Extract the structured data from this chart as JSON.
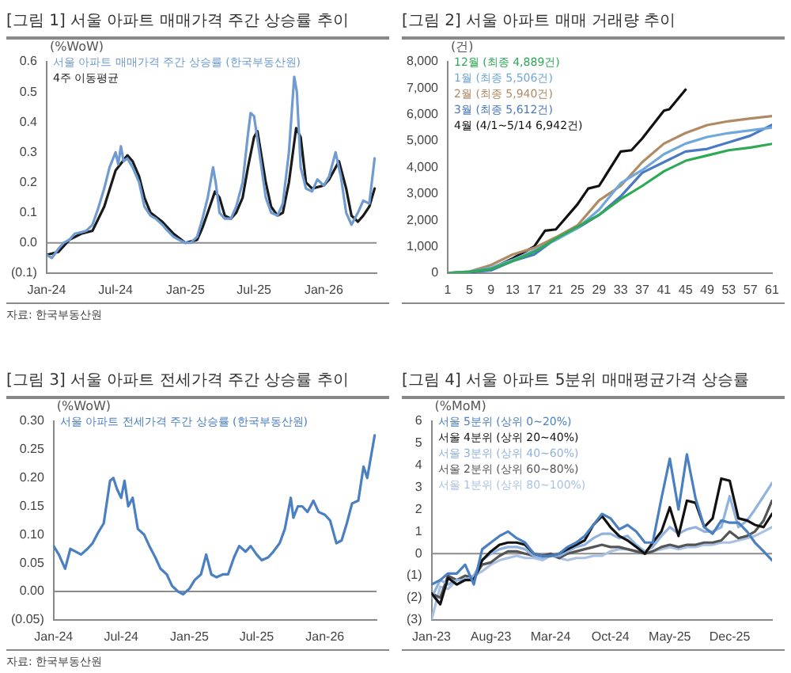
{
  "chart_data": [
    {
      "type": "line",
      "title": "[그림 1] 서울 아파트 매매가격 주간 상승률 추이",
      "ylabel": "(%WoW)",
      "annotations": [
        "자료: 한국부동산원"
      ],
      "legend": "top left",
      "marker": "none",
      "line_style": "solid",
      "grid": false,
      "xlim": [
        "2024-01-01",
        "2026-05-20"
      ],
      "xticks": [
        {
          "value": "2024-01-01",
          "label": "Jan-24"
        },
        {
          "value": "2024-07-01",
          "label": "Jul-24"
        },
        {
          "value": "2025-01-01",
          "label": "Jan-25"
        },
        {
          "value": "2025-07-01",
          "label": "Jul-25"
        },
        {
          "value": "2026-01-01",
          "label": "Jan-26"
        }
      ],
      "ylim": [
        -0.1,
        0.6
      ],
      "yticks": [
        {
          "value": -0.1,
          "label": "(0.1)"
        },
        {
          "value": 0,
          "label": "0.0"
        },
        0.1,
        0.2,
        0.3,
        0.4,
        0.5,
        0.6
      ],
      "ref_lines": [
        {
          "axis": "y",
          "value": 0,
          "color": "#8c8c8c"
        }
      ],
      "series": [
        {
          "name": "서울 아파트 매매가격 주간 상승률 (한국부동산원)",
          "color": "#6f9bd1",
          "x": [
            "2024-01-01",
            "2024-01-15",
            "2024-02-01",
            "2024-02-15",
            "2024-03-01",
            "2024-03-15",
            "2024-04-01",
            "2024-04-15",
            "2024-05-01",
            "2024-05-15",
            "2024-06-01",
            "2024-06-15",
            "2024-07-01",
            "2024-07-08",
            "2024-07-15",
            "2024-07-22",
            "2024-08-01",
            "2024-08-15",
            "2024-09-01",
            "2024-09-15",
            "2024-10-01",
            "2024-10-15",
            "2024-11-01",
            "2024-11-15",
            "2024-12-01",
            "2024-12-15",
            "2025-01-01",
            "2025-01-15",
            "2025-02-01",
            "2025-02-15",
            "2025-03-01",
            "2025-03-15",
            "2025-03-22",
            "2025-04-01",
            "2025-04-15",
            "2025-05-01",
            "2025-05-15",
            "2025-06-01",
            "2025-06-15",
            "2025-06-22",
            "2025-07-01",
            "2025-07-15",
            "2025-08-01",
            "2025-08-15",
            "2025-09-01",
            "2025-09-15",
            "2025-10-01",
            "2025-10-15",
            "2025-10-22",
            "2025-11-01",
            "2025-11-15",
            "2025-12-01",
            "2025-12-15",
            "2026-01-01",
            "2026-01-15",
            "2026-02-01",
            "2026-02-15",
            "2026-03-01",
            "2026-03-15",
            "2026-04-01",
            "2026-04-15",
            "2026-05-01",
            "2026-05-15"
          ],
          "values": [
            -0.04,
            -0.05,
            -0.02,
            0.0,
            0.01,
            0.03,
            0.035,
            0.04,
            0.06,
            0.11,
            0.18,
            0.25,
            0.3,
            0.26,
            0.32,
            0.27,
            0.28,
            0.25,
            0.2,
            0.12,
            0.09,
            0.08,
            0.06,
            0.04,
            0.02,
            0.01,
            0.0,
            0.0,
            0.02,
            0.08,
            0.15,
            0.25,
            0.2,
            0.1,
            0.08,
            0.08,
            0.12,
            0.2,
            0.36,
            0.43,
            0.42,
            0.3,
            0.15,
            0.1,
            0.09,
            0.13,
            0.3,
            0.55,
            0.5,
            0.25,
            0.18,
            0.17,
            0.21,
            0.19,
            0.22,
            0.3,
            0.22,
            0.1,
            0.06,
            0.1,
            0.14,
            0.13,
            0.28
          ]
        },
        {
          "name": "4주 이동평균",
          "color": "#1a1a1a",
          "x": [
            "2024-01-01",
            "2024-02-01",
            "2024-03-01",
            "2024-04-01",
            "2024-05-01",
            "2024-06-01",
            "2024-07-01",
            "2024-08-01",
            "2024-08-15",
            "2024-09-01",
            "2024-09-15",
            "2024-10-01",
            "2024-11-01",
            "2024-12-01",
            "2025-01-01",
            "2025-02-01",
            "2025-02-15",
            "2025-03-01",
            "2025-03-20",
            "2025-04-01",
            "2025-04-15",
            "2025-05-01",
            "2025-05-15",
            "2025-06-01",
            "2025-06-15",
            "2025-07-01",
            "2025-07-10",
            "2025-08-01",
            "2025-08-15",
            "2025-09-01",
            "2025-09-15",
            "2025-10-01",
            "2025-10-20",
            "2025-11-01",
            "2025-11-15",
            "2025-12-01",
            "2026-01-01",
            "2026-01-15",
            "2026-02-10",
            "2026-03-01",
            "2026-03-15",
            "2026-04-01",
            "2026-04-15",
            "2026-05-01",
            "2026-05-15"
          ],
          "values": [
            -0.04,
            -0.03,
            0.01,
            0.03,
            0.04,
            0.12,
            0.24,
            0.29,
            0.27,
            0.22,
            0.15,
            0.1,
            0.07,
            0.03,
            0.0,
            0.01,
            0.05,
            0.1,
            0.17,
            0.15,
            0.09,
            0.08,
            0.1,
            0.15,
            0.25,
            0.35,
            0.37,
            0.2,
            0.12,
            0.09,
            0.1,
            0.2,
            0.38,
            0.35,
            0.2,
            0.18,
            0.19,
            0.21,
            0.27,
            0.18,
            0.09,
            0.07,
            0.09,
            0.12,
            0.18
          ]
        }
      ]
    },
    {
      "type": "line",
      "title": "[그림 2] 서울 아파트 매매 거래량 추이",
      "ylabel": "(건)",
      "legend": "top left",
      "marker": "none",
      "line_style": "solid",
      "grid": false,
      "xlim": [
        1,
        61
      ],
      "xticks": [
        1,
        5,
        9,
        13,
        17,
        21,
        25,
        29,
        33,
        37,
        41,
        45,
        49,
        53,
        57,
        61
      ],
      "ylim": [
        0,
        8000
      ],
      "yticks": [
        0,
        {
          "value": 1000,
          "label": "1,000"
        },
        {
          "value": 2000,
          "label": "2,000"
        },
        {
          "value": 3000,
          "label": "3,000"
        },
        {
          "value": 4000,
          "label": "4,000"
        },
        {
          "value": 5000,
          "label": "5,000"
        },
        {
          "value": 6000,
          "label": "6,000"
        },
        {
          "value": 7000,
          "label": "7,000"
        },
        {
          "value": 8000,
          "label": "8,000"
        }
      ],
      "series": [
        {
          "name": "12월 (최종 4,889건)",
          "color": "#2eaa55",
          "x": [
            1,
            5,
            9,
            13,
            17,
            21,
            25,
            29,
            33,
            37,
            41,
            45,
            49,
            53,
            57,
            61
          ],
          "values": [
            0,
            50,
            150,
            450,
            800,
            1300,
            1750,
            2200,
            2800,
            3300,
            3850,
            4250,
            4450,
            4650,
            4750,
            4889
          ]
        },
        {
          "name": "1월 (최종 5,506건)",
          "color": "#6fa8dc",
          "x": [
            1,
            5,
            9,
            13,
            17,
            21,
            25,
            29,
            33,
            37,
            41,
            45,
            49,
            53,
            57,
            61
          ],
          "values": [
            0,
            50,
            200,
            500,
            850,
            1250,
            1700,
            2400,
            3400,
            3900,
            4500,
            4900,
            5150,
            5300,
            5400,
            5506
          ]
        },
        {
          "name": "2월 (최종 5,940건)",
          "color": "#b08a64",
          "x": [
            1,
            5,
            9,
            13,
            17,
            21,
            25,
            29,
            33,
            37,
            41,
            45,
            49,
            53,
            57,
            61
          ],
          "values": [
            0,
            50,
            300,
            700,
            950,
            1350,
            1800,
            2750,
            3300,
            4200,
            4900,
            5300,
            5600,
            5750,
            5850,
            5940
          ]
        },
        {
          "name": "3월 (최종 5,612건)",
          "color": "#4a78c2",
          "x": [
            1,
            5,
            9,
            13,
            17,
            21,
            25,
            29,
            33,
            37,
            41,
            45,
            49,
            53,
            57,
            61
          ],
          "values": [
            0,
            30,
            100,
            450,
            700,
            1300,
            1700,
            2200,
            2900,
            3800,
            4200,
            4600,
            4700,
            4950,
            5200,
            5612
          ]
        },
        {
          "name": "4월 (4/1~5/14 6,942건)",
          "color": "#111111",
          "x": [
            1,
            5,
            9,
            13,
            17,
            19,
            21,
            25,
            27,
            29,
            33,
            35,
            37,
            41,
            42,
            45
          ],
          "values": [
            0,
            30,
            150,
            550,
            1000,
            1600,
            1650,
            2600,
            3200,
            3300,
            4600,
            4650,
            5100,
            6150,
            6200,
            6942
          ]
        }
      ]
    },
    {
      "type": "line",
      "title": "[그림 3] 서울 아파트 전세가격 주간 상승률 추이",
      "ylabel": "(%WoW)",
      "annotations": [
        "자료: 한국부동산원"
      ],
      "legend": "top left",
      "marker": "none",
      "line_style": "solid",
      "grid": false,
      "xlim": [
        "2024-01-01",
        "2026-05-20"
      ],
      "xticks": [
        {
          "value": "2024-01-01",
          "label": "Jan-24"
        },
        {
          "value": "2024-07-01",
          "label": "Jul-24"
        },
        {
          "value": "2025-01-01",
          "label": "Jan-25"
        },
        {
          "value": "2025-07-01",
          "label": "Jul-25"
        },
        {
          "value": "2026-01-01",
          "label": "Jan-26"
        }
      ],
      "ylim": [
        -0.05,
        0.3
      ],
      "yticks": [
        {
          "value": -0.05,
          "label": "(0.05)"
        },
        {
          "value": 0,
          "label": "0.00"
        },
        {
          "value": 0.05,
          "label": "0.05"
        },
        {
          "value": 0.1,
          "label": "0.10"
        },
        {
          "value": 0.15,
          "label": "0.15"
        },
        {
          "value": 0.2,
          "label": "0.20"
        },
        {
          "value": 0.25,
          "label": "0.25"
        },
        {
          "value": 0.3,
          "label": "0.30"
        }
      ],
      "ref_lines": [
        {
          "axis": "y",
          "value": 0,
          "color": "#8c8c8c"
        }
      ],
      "series": [
        {
          "name": "서울 아파트 전세가격 주간 상승률 (한국부동산원)",
          "color": "#4a7fc1",
          "x": [
            "2024-01-01",
            "2024-01-15",
            "2024-02-01",
            "2024-02-15",
            "2024-03-01",
            "2024-03-15",
            "2024-04-01",
            "2024-04-15",
            "2024-05-01",
            "2024-05-15",
            "2024-06-01",
            "2024-06-10",
            "2024-06-20",
            "2024-07-01",
            "2024-07-10",
            "2024-07-20",
            "2024-08-01",
            "2024-08-15",
            "2024-09-01",
            "2024-09-15",
            "2024-10-01",
            "2024-10-15",
            "2024-11-01",
            "2024-11-15",
            "2024-12-01",
            "2024-12-15",
            "2025-01-01",
            "2025-01-15",
            "2025-02-01",
            "2025-02-15",
            "2025-03-01",
            "2025-03-15",
            "2025-04-01",
            "2025-04-15",
            "2025-05-01",
            "2025-05-15",
            "2025-06-01",
            "2025-06-15",
            "2025-07-01",
            "2025-07-15",
            "2025-08-01",
            "2025-08-15",
            "2025-09-01",
            "2025-09-15",
            "2025-10-01",
            "2025-10-08",
            "2025-10-20",
            "2025-11-01",
            "2025-11-15",
            "2025-12-01",
            "2025-12-15",
            "2026-01-01",
            "2026-01-15",
            "2026-02-01",
            "2026-02-15",
            "2026-03-01",
            "2026-03-15",
            "2026-04-01",
            "2026-04-15",
            "2026-04-25",
            "2026-05-15"
          ],
          "values": [
            0.08,
            0.065,
            0.04,
            0.075,
            0.07,
            0.065,
            0.075,
            0.085,
            0.105,
            0.12,
            0.195,
            0.2,
            0.18,
            0.165,
            0.195,
            0.15,
            0.165,
            0.11,
            0.1,
            0.08,
            0.06,
            0.04,
            0.03,
            0.01,
            0.0,
            -0.005,
            0.005,
            0.02,
            0.03,
            0.065,
            0.03,
            0.025,
            0.03,
            0.03,
            0.06,
            0.08,
            0.07,
            0.08,
            0.065,
            0.055,
            0.06,
            0.07,
            0.085,
            0.11,
            0.165,
            0.13,
            0.15,
            0.15,
            0.14,
            0.16,
            0.14,
            0.135,
            0.125,
            0.085,
            0.09,
            0.12,
            0.155,
            0.16,
            0.22,
            0.2,
            0.275
          ]
        }
      ]
    },
    {
      "type": "line",
      "title": "[그림 4] 서울 아파트 5분위 매매평균가격 상승률",
      "ylabel": "(%MoM)",
      "legend": "top left",
      "marker": "none",
      "line_style": "solid",
      "grid": false,
      "xlim": [
        "2023-01",
        "2026-05"
      ],
      "xticks": [
        {
          "value": "2023-01",
          "label": "Jan-23"
        },
        {
          "value": "2023-08",
          "label": "Aug-23"
        },
        {
          "value": "2024-03",
          "label": "Mar-24"
        },
        {
          "value": "2024-10",
          "label": "Oct-24"
        },
        {
          "value": "2025-05",
          "label": "May-25"
        },
        {
          "value": "2025-12",
          "label": "Dec-25"
        }
      ],
      "ylim": [
        -3,
        6
      ],
      "yticks": [
        {
          "value": -3,
          "label": "(3)"
        },
        {
          "value": -2,
          "label": "(2)"
        },
        {
          "value": -1,
          "label": "(1)"
        },
        0,
        1,
        2,
        3,
        4,
        5,
        6
      ],
      "ref_lines": [
        {
          "axis": "y",
          "value": 0,
          "color": "#8c8c8c"
        }
      ],
      "x": [
        "2023-01",
        "2023-02",
        "2023-03",
        "2023-04",
        "2023-05",
        "2023-06",
        "2023-07",
        "2023-08",
        "2023-09",
        "2023-10",
        "2023-11",
        "2023-12",
        "2024-01",
        "2024-02",
        "2024-03",
        "2024-04",
        "2024-05",
        "2024-06",
        "2024-07",
        "2024-08",
        "2024-09",
        "2024-10",
        "2024-11",
        "2024-12",
        "2025-01",
        "2025-02",
        "2025-03",
        "2025-04",
        "2025-05",
        "2025-06",
        "2025-07",
        "2025-08",
        "2025-09",
        "2025-10",
        "2025-11",
        "2025-12",
        "2026-01",
        "2026-02",
        "2026-03",
        "2026-04",
        "2026-05"
      ],
      "series": [
        {
          "name": "서울 5분위 (상위 0~20%)",
          "color": "#4a7fc1",
          "values": [
            -1.4,
            -1.2,
            -0.9,
            -0.9,
            -0.5,
            -1.4,
            0.2,
            0.5,
            0.8,
            1.0,
            0.7,
            0.5,
            0.0,
            -0.1,
            -0.1,
            0.0,
            0.3,
            0.5,
            0.8,
            1.3,
            1.8,
            1.6,
            1.1,
            1.3,
            1.0,
            0.5,
            0.5,
            2.5,
            4.3,
            2.0,
            4.5,
            2.5,
            1.2,
            0.9,
            1.5,
            1.4,
            1.4,
            1.0,
            0.5,
            0.1,
            -0.3
          ]
        },
        {
          "name": "서울 4분위 (상위 20~40%)",
          "color": "#111111",
          "values": [
            -1.8,
            -2.3,
            -1.1,
            -1.4,
            -1.2,
            -1.2,
            -0.3,
            0.1,
            0.4,
            0.5,
            0.5,
            0.4,
            0.0,
            -0.1,
            -0.1,
            0.0,
            0.2,
            0.4,
            0.6,
            1.3,
            1.7,
            1.2,
            0.8,
            0.6,
            0.3,
            0.0,
            0.5,
            1.0,
            2.1,
            0.8,
            2.4,
            2.3,
            1.2,
            1.6,
            3.4,
            3.3,
            1.6,
            1.5,
            1.3,
            1.2,
            1.8
          ]
        },
        {
          "name": "서울 3분위 (상위 40~60%)",
          "color": "#8fb2de",
          "values": [
            -2.0,
            -1.2,
            -1.4,
            -1.2,
            -1.2,
            -1.0,
            -0.3,
            0.0,
            0.2,
            0.3,
            0.3,
            0.2,
            -0.1,
            -0.2,
            -0.1,
            -0.1,
            0.1,
            0.3,
            0.4,
            0.7,
            0.9,
            0.9,
            0.7,
            0.8,
            0.4,
            0.1,
            0.3,
            0.8,
            1.2,
            0.9,
            1.1,
            1.2,
            1.0,
            1.0,
            1.2,
            2.6,
            1.2,
            1.5,
            2.0,
            2.6,
            3.2
          ]
        },
        {
          "name": "서울 2분위 (상위 60~80%)",
          "color": "#555555",
          "values": [
            -1.8,
            -2.0,
            -1.0,
            -1.2,
            -1.0,
            -1.1,
            -0.5,
            -0.4,
            -0.1,
            0.1,
            0.1,
            0.0,
            -0.1,
            -0.1,
            0.0,
            -0.2,
            0.0,
            0.1,
            0.2,
            0.3,
            0.4,
            0.3,
            0.3,
            0.2,
            0.1,
            0.0,
            0.1,
            0.3,
            0.4,
            0.3,
            0.4,
            0.4,
            0.5,
            0.5,
            0.6,
            1.0,
            0.7,
            0.8,
            1.0,
            1.5,
            2.4
          ]
        },
        {
          "name": "서울 1분위 (상위 80~100%)",
          "color": "#a9c2e4",
          "values": [
            -3.0,
            -1.5,
            -1.6,
            -1.2,
            -1.1,
            -1.0,
            -0.8,
            -0.5,
            -0.3,
            -0.2,
            -0.1,
            -0.2,
            -0.2,
            -0.3,
            -0.1,
            -0.2,
            -0.3,
            -0.2,
            -0.2,
            -0.1,
            -0.1,
            0.1,
            0.2,
            0.2,
            0.1,
            0.0,
            0.1,
            0.2,
            0.3,
            0.2,
            0.3,
            0.3,
            0.4,
            0.4,
            0.5,
            0.5,
            0.6,
            0.7,
            0.8,
            1.0,
            1.2
          ]
        }
      ]
    }
  ]
}
